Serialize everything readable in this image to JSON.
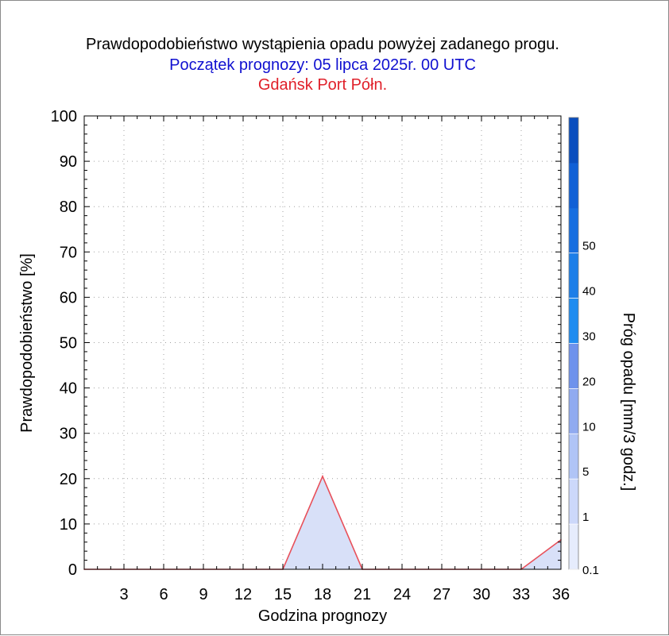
{
  "header": {
    "title": "Prawdopodobieństwo wystąpienia opadu powyżej zadanego progu.",
    "subtitle": "Początek prognozy: 05 lipca 2025r. 00 UTC",
    "location": "Gdańsk Port Półn."
  },
  "colors": {
    "title": "#000000",
    "subtitle": "#1010d0",
    "location": "#e0202a",
    "line": "#e8505a",
    "fill": "#d8e0f8",
    "grid": "#a0a0a0"
  },
  "chart_data": {
    "type": "area",
    "xlabel": "Godzina prognozy",
    "ylabel": "Prawdopodobieństwo [%]",
    "xlim": [
      0,
      36
    ],
    "ylim": [
      0,
      100
    ],
    "x_ticks": [
      3,
      6,
      9,
      12,
      15,
      18,
      21,
      24,
      27,
      30,
      33,
      36
    ],
    "y_ticks": [
      0,
      10,
      20,
      30,
      40,
      50,
      60,
      70,
      80,
      90,
      100
    ],
    "grid": true,
    "series": [
      {
        "x": [
          0,
          3,
          6,
          9,
          12,
          15,
          18,
          21,
          24,
          27,
          30,
          33,
          36
        ],
        "values": [
          0,
          0,
          0,
          0,
          0,
          0,
          20.5,
          0,
          0,
          0,
          0,
          0,
          6.5
        ]
      }
    ],
    "colorbar": {
      "label": "Próg opadu [mm/3 godz.]",
      "tick_labels": [
        "0.1",
        "1",
        "5",
        "10",
        "20",
        "30",
        "40",
        "50"
      ],
      "colors": [
        "#e6ecfc",
        "#ccd8fa",
        "#b0c4f6",
        "#90aaf0",
        "#6e92ec",
        "#1e8cf0",
        "#1c7ee8",
        "#166ee0",
        "#1060d6",
        "#0a4ebe"
      ]
    }
  }
}
